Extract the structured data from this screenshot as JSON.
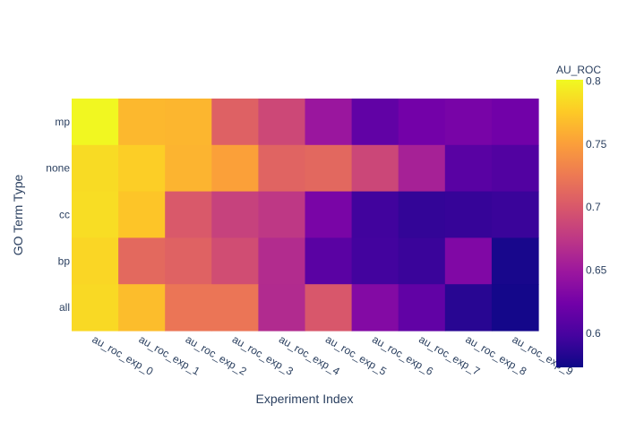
{
  "chart_data": {
    "type": "heatmap",
    "title": "",
    "xlabel": "Experiment Index",
    "ylabel": "GO Term Type",
    "x": [
      "au_roc_exp_0",
      "au_roc_exp_1",
      "au_roc_exp_2",
      "au_roc_exp_3",
      "au_roc_exp_4",
      "au_roc_exp_5",
      "au_roc_exp_6",
      "au_roc_exp_7",
      "au_roc_exp_8",
      "au_roc_exp_9"
    ],
    "y": [
      "mp",
      "none",
      "cc",
      "bp",
      "all"
    ],
    "z": [
      [
        0.8,
        0.765,
        0.764,
        0.707,
        0.688,
        0.648,
        0.614,
        0.624,
        0.627,
        0.623
      ],
      [
        0.785,
        0.778,
        0.763,
        0.751,
        0.709,
        0.712,
        0.687,
        0.657,
        0.609,
        0.605
      ],
      [
        0.786,
        0.773,
        0.701,
        0.683,
        0.675,
        0.628,
        0.596,
        0.59,
        0.591,
        0.593
      ],
      [
        0.782,
        0.713,
        0.708,
        0.692,
        0.666,
        0.61,
        0.597,
        0.593,
        0.632,
        0.578
      ],
      [
        0.784,
        0.768,
        0.722,
        0.722,
        0.665,
        0.7,
        0.634,
        0.614,
        0.585,
        0.576
      ]
    ],
    "colorbar": {
      "title": "AU_ROC",
      "range": [
        0.573,
        0.801
      ],
      "ticks": [
        0.6,
        0.65,
        0.7,
        0.75,
        0.8
      ],
      "tick_labels": [
        "0.6",
        "0.65",
        "0.7",
        "0.75",
        "0.8"
      ],
      "colorscale": [
        "#0d0887",
        "#46039f",
        "#7201a8",
        "#9c179e",
        "#bd3786",
        "#d8576b",
        "#ed7953",
        "#fb9f3a",
        "#fdca26",
        "#f0f921"
      ]
    },
    "grid": false,
    "legend": "colorbar-right"
  }
}
